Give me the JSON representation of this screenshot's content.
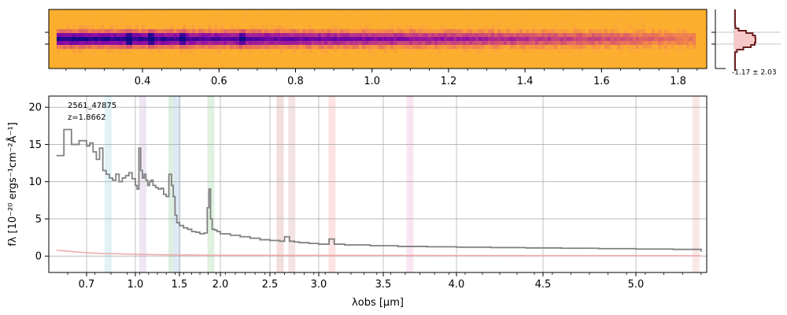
{
  "figure": {
    "source_label": "2561_47875",
    "redshift_label": "z=1.8662",
    "histogram_label": "-1.17 ± 2.03"
  },
  "chart_data": [
    {
      "type": "heatmap",
      "panel": "2d-spectrum",
      "xlabel": "",
      "ylabel": "",
      "colormap": "plasma",
      "x_ticks": [
        "0.4",
        "0.6",
        "0.8",
        "1.0",
        "1.2",
        "1.4",
        "1.6",
        "1.8"
      ],
      "x_tick_values": [
        0.4,
        0.6,
        0.8,
        1.0,
        1.2,
        1.4,
        1.6,
        1.8
      ],
      "xlim": [
        0.155,
        1.875
      ],
      "bright_features_um": [
        0.36,
        0.42,
        0.5,
        0.655
      ]
    },
    {
      "type": "histogram",
      "panel": "residual-histogram",
      "label": "-1.17 ± 2.03",
      "mean": -1.17,
      "std": 2.03
    },
    {
      "type": "line",
      "panel": "1d-spectrum",
      "title": "",
      "xlabel": "λobs [μm]",
      "ylabel": "fλ [10⁻²⁰ ergs⁻¹cm⁻²Å⁻¹]",
      "x_scale": "nonlinear",
      "x_ticks": [
        "0.7",
        "1.0",
        "1.5",
        "2.0",
        "2.5",
        "3.0",
        "3.5",
        "4.0",
        "4.5",
        "5.0"
      ],
      "x_tick_values": [
        0.7,
        1.0,
        1.5,
        2.0,
        2.5,
        3.0,
        3.5,
        4.0,
        4.5,
        5.0
      ],
      "y_ticks": [
        "0",
        "5",
        "10",
        "15",
        "20"
      ],
      "y_tick_values": [
        0,
        5,
        10,
        15,
        20
      ],
      "xlim": [
        0.6,
        5.38
      ],
      "ylim": [
        -2.2,
        21.5
      ],
      "grid": true,
      "series": [
        {
          "color": "#808080",
          "x": [
            0.62,
            0.64,
            0.66,
            0.68,
            0.7,
            0.72,
            0.74,
            0.76,
            0.78,
            0.8,
            0.82,
            0.84,
            0.86,
            0.88,
            0.9,
            0.92,
            0.94,
            0.96,
            0.98,
            1.0,
            1.02,
            1.04,
            1.06,
            1.08,
            1.1,
            1.12,
            1.14,
            1.16,
            1.18,
            1.2,
            1.23,
            1.26,
            1.29,
            1.32,
            1.35,
            1.38,
            1.41,
            1.43,
            1.45,
            1.47,
            1.5,
            1.55,
            1.6,
            1.65,
            1.7,
            1.75,
            1.8,
            1.84,
            1.86,
            1.88,
            1.9,
            1.93,
            1.96,
            2.0,
            2.1,
            2.2,
            2.3,
            2.4,
            2.5,
            2.6,
            2.65,
            2.7,
            2.75,
            2.8,
            2.9,
            3.0,
            3.05,
            3.08,
            3.12,
            3.2,
            3.4,
            3.6,
            3.8,
            4.0,
            4.2,
            4.4,
            4.6,
            4.8,
            5.0,
            5.2,
            5.35
          ],
          "y": [
            13.5,
            17.0,
            15.0,
            15.5,
            14.8,
            15.2,
            14.0,
            13.0,
            14.5,
            11.5,
            11.0,
            10.5,
            10.2,
            11.0,
            10.0,
            10.5,
            10.8,
            11.2,
            10.4,
            9.5,
            9.0,
            14.5,
            11.5,
            10.5,
            11.0,
            10.2,
            9.5,
            10.0,
            10.2,
            9.5,
            9.2,
            9.0,
            9.1,
            8.3,
            8.0,
            11.0,
            9.5,
            8.0,
            5.5,
            4.5,
            4.1,
            3.8,
            3.6,
            3.3,
            3.2,
            3.0,
            3.1,
            6.5,
            9.0,
            5.0,
            3.6,
            3.5,
            3.3,
            3.0,
            2.8,
            2.6,
            2.4,
            2.2,
            2.1,
            2.0,
            2.6,
            2.0,
            1.9,
            1.8,
            1.7,
            1.6,
            1.6,
            2.3,
            1.6,
            1.5,
            1.4,
            1.3,
            1.25,
            1.2,
            1.15,
            1.1,
            1.05,
            1.0,
            0.95,
            0.9,
            0.6
          ]
        },
        {
          "color": "#f0a6a6",
          "x": [
            0.62,
            0.7,
            0.8,
            0.9,
            1.0,
            1.2,
            1.5,
            2.0,
            3.0,
            4.0,
            5.35
          ],
          "y": [
            0.8,
            0.45,
            0.35,
            0.3,
            0.25,
            0.2,
            0.15,
            0.12,
            0.1,
            0.08,
            0.05
          ]
        }
      ],
      "line_bands_um": [
        0.83,
        1.08,
        1.41,
        1.47,
        1.88,
        2.6,
        2.72,
        3.1,
        3.68,
        5.32
      ],
      "band_colors": [
        "#ddf1f5",
        "#ece3f2",
        "#d9edde",
        "#dce8f5",
        "#dcf0dc",
        "#f2d9d9",
        "#f2e0e0",
        "#fde0e0",
        "#f7e1f2",
        "#fbe3e3"
      ]
    }
  ]
}
